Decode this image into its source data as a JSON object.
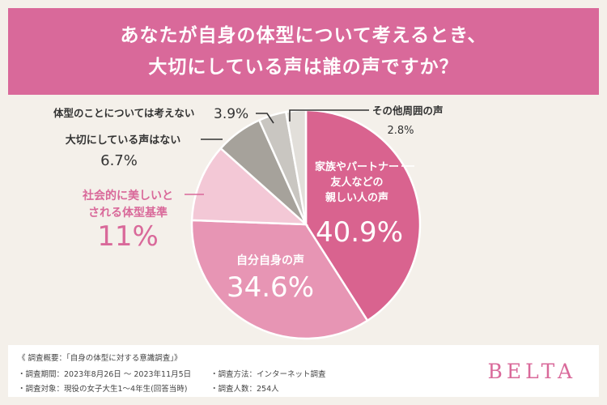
{
  "title": {
    "line1": "あなたが自身の体型について考えるとき、",
    "line2": "大切にしている声は誰の声ですか？"
  },
  "chart_data": {
    "type": "pie",
    "slices": [
      {
        "label": "家族やパートナー\n友人などの\n親しい人の声",
        "value": 40.9,
        "display": "40.9%",
        "color": "#d9638f"
      },
      {
        "label": "自分自身の声",
        "value": 34.6,
        "display": "34.6%",
        "color": "#e795b4"
      },
      {
        "label": "社会的に美しいと\nされる体型基準",
        "value": 11,
        "display": "11%",
        "color": "#f3c8d6"
      },
      {
        "label": "大切にしている声はない",
        "value": 6.7,
        "display": "6.7%",
        "color": "#a6a29b"
      },
      {
        "label": "体型のことについては考えない",
        "value": 3.9,
        "display": "3.9%",
        "color": "#c9c6c1"
      },
      {
        "label": "その他周囲の声",
        "value": 2.8,
        "display": "2.8%",
        "color": "#e2dfda"
      }
    ]
  },
  "footer": {
    "summary": "《 調査概要：「自身の体型に対する意識調査」》",
    "period": "・調査期間：2023年8月26日 〜 2023年11月5日",
    "method": "・調査方法：インターネット調査",
    "target": "・調査対象：現役の女子大生1〜4年生(回答当時)",
    "count": "・調査人数：254人",
    "brand": "BELTA"
  },
  "colors": {
    "accent": "#d9699a",
    "background": "#f4f0ea",
    "label_text": "#333333"
  }
}
